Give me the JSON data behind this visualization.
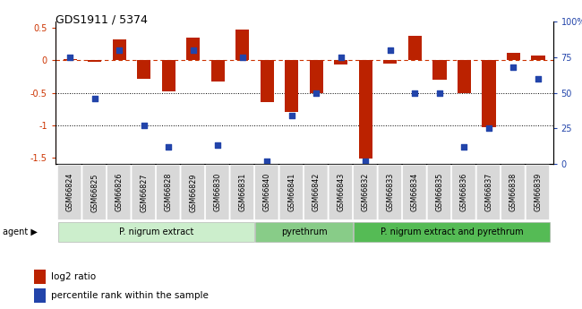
{
  "title": "GDS1911 / 5374",
  "samples": [
    "GSM66824",
    "GSM66825",
    "GSM66826",
    "GSM66827",
    "GSM66828",
    "GSM66829",
    "GSM66830",
    "GSM66831",
    "GSM66840",
    "GSM66841",
    "GSM66842",
    "GSM66843",
    "GSM66832",
    "GSM66833",
    "GSM66834",
    "GSM66835",
    "GSM66836",
    "GSM66837",
    "GSM66838",
    "GSM66839"
  ],
  "log2_ratio": [
    0.02,
    -0.02,
    0.32,
    -0.28,
    -0.48,
    0.35,
    -0.32,
    0.48,
    -0.65,
    -0.8,
    -0.5,
    -0.07,
    -1.52,
    -0.05,
    0.38,
    -0.3,
    -0.5,
    -1.03,
    0.12,
    0.07
  ],
  "percentile": [
    75,
    46,
    80,
    27,
    12,
    80,
    13,
    75,
    2,
    34,
    50,
    75,
    2,
    80,
    50,
    50,
    12,
    25,
    68,
    60
  ],
  "bar_color": "#bb2200",
  "dot_color": "#2244aa",
  "zero_line_color": "#cc3300",
  "dot_line_color": "#2244aa",
  "ylim_left": [
    -1.6,
    0.6
  ],
  "ylim_right": [
    0,
    100
  ],
  "left_yticks": [
    0.5,
    0.0,
    -0.5,
    -1.0,
    -1.5
  ],
  "left_yticklabels": [
    "0.5",
    "0",
    "-0.5",
    "-1",
    "-1.5"
  ],
  "groups": [
    {
      "label": "P. nigrum extract",
      "start": 0,
      "end": 8,
      "color": "#cceecc"
    },
    {
      "label": "pyrethrum",
      "start": 8,
      "end": 12,
      "color": "#88cc88"
    },
    {
      "label": "P. nigrum extract and pyrethrum",
      "start": 12,
      "end": 20,
      "color": "#55bb55"
    }
  ],
  "legend_items": [
    {
      "label": "log2 ratio",
      "color": "#bb2200"
    },
    {
      "label": "percentile rank within the sample",
      "color": "#2244aa"
    }
  ],
  "right_ticks": [
    0,
    25,
    50,
    75,
    100
  ],
  "right_tick_labels": [
    "0",
    "25",
    "50",
    "75",
    "100%"
  ]
}
